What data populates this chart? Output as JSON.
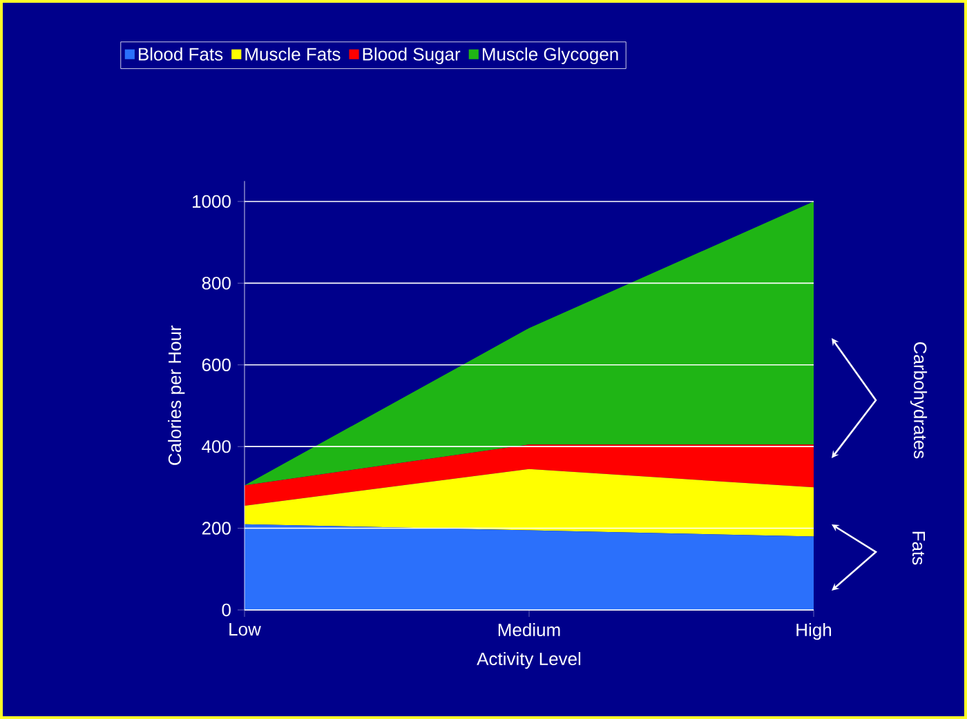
{
  "chart_data": {
    "type": "area",
    "stacked": true,
    "xlabel": "Activity Level",
    "ylabel": "Calories per Hour",
    "categories": [
      "Low",
      "Medium",
      "High"
    ],
    "series": [
      {
        "name": "Blood Fats",
        "color": "#2b70fb",
        "values": [
          210,
          195,
          180
        ]
      },
      {
        "name": "Muscle Fats",
        "color": "#ffff00",
        "values": [
          45,
          150,
          120
        ]
      },
      {
        "name": "Blood Sugar",
        "color": "#ff0000",
        "values": [
          50,
          60,
          105
        ]
      },
      {
        "name": "Muscle Glycogen",
        "color": "#1fb515",
        "values": [
          0,
          285,
          595
        ]
      }
    ],
    "ylim": [
      0,
      1050
    ],
    "yticks": [
      0,
      200,
      400,
      600,
      800,
      1000
    ],
    "grid": "y",
    "legend": "top",
    "annotations": [
      "Carbohydrates",
      "Fats"
    ]
  }
}
